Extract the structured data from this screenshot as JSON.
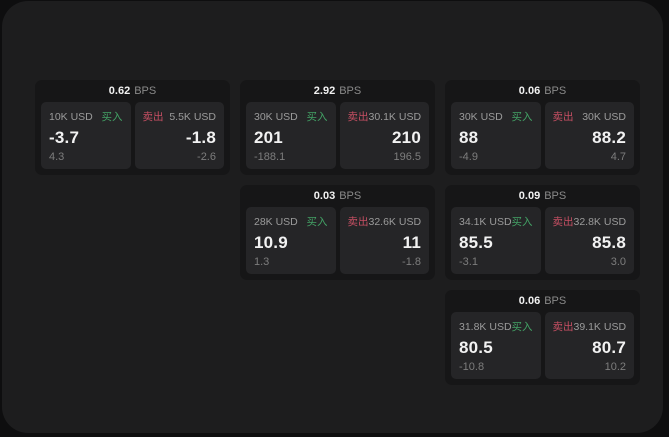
{
  "colors": {
    "outer_background": "#0e0e0f",
    "panel_background": "#1d1d1e",
    "card_background": "#161617",
    "tile_background": "#252527",
    "buy_green": "#43a366",
    "sell_red": "#c64f63",
    "value_white": "#f2f2f2",
    "muted_gray": "#8a8a8a"
  },
  "cards": [
    {
      "bps_value": "0.62",
      "bps_unit": "BPS",
      "buy": {
        "amount": "10K USD",
        "label": "买入",
        "price": "-3.7",
        "delta": "4.3"
      },
      "sell": {
        "label": "卖出",
        "amount": "5.5K USD",
        "price": "-1.8",
        "delta": "-2.6"
      }
    },
    {
      "bps_value": "2.92",
      "bps_unit": "BPS",
      "buy": {
        "amount": "30K USD",
        "label": "买入",
        "price": "201",
        "delta": "-188.1"
      },
      "sell": {
        "label": "卖出",
        "amount": "30.1K USD",
        "price": "210",
        "delta": "196.5"
      }
    },
    {
      "bps_value": "0.06",
      "bps_unit": "BPS",
      "buy": {
        "amount": "30K USD",
        "label": "买入",
        "price": "88",
        "delta": "-4.9"
      },
      "sell": {
        "label": "卖出",
        "amount": "30K USD",
        "price": "88.2",
        "delta": "4.7"
      }
    },
    {
      "bps_value": "0.03",
      "bps_unit": "BPS",
      "buy": {
        "amount": "28K USD",
        "label": "买入",
        "price": "10.9",
        "delta": "1.3"
      },
      "sell": {
        "label": "卖出",
        "amount": "32.6K USD",
        "price": "11",
        "delta": "-1.8"
      }
    },
    {
      "bps_value": "0.09",
      "bps_unit": "BPS",
      "buy": {
        "amount": "34.1K USD",
        "label": "买入",
        "price": "85.5",
        "delta": "-3.1"
      },
      "sell": {
        "label": "卖出",
        "amount": "32.8K USD",
        "price": "85.8",
        "delta": "3.0"
      }
    },
    {
      "bps_value": "0.06",
      "bps_unit": "BPS",
      "buy": {
        "amount": "31.8K USD",
        "label": "买入",
        "price": "80.5",
        "delta": "-10.8"
      },
      "sell": {
        "label": "卖出",
        "amount": "39.1K USD",
        "price": "80.7",
        "delta": "10.2"
      }
    }
  ]
}
